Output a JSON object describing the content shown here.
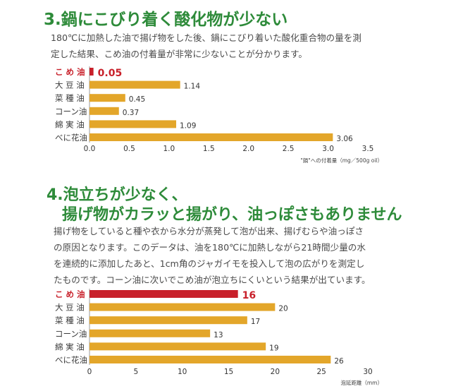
{
  "section1": {
    "title": "3.鍋にこびり着く酸化物が少ない",
    "para": [
      "180℃に加熱した油で揚げ物をした後、鍋にこびり着いた酸化重合物の量を測",
      "定した結果、こめ油の付着量が非常に少ないことが分かります。"
    ]
  },
  "section2": {
    "title_line1": "4.泡立ちが少なく、",
    "title_line2": "揚げ物がカラッと揚がり、油っぽさもありません",
    "para": [
      "揚げ物をしていると種や衣から水分が蒸発して泡が出来、揚げむらや油っぽさ",
      "の原因となります。このデータは、油を180℃に加熱しながら21時間少量の水",
      "を連続的に添加したあと、1cm角のジャガイモを投入して泡の広がりを測定し",
      "たものです。コーン油に次いでこめ油が泡立ちにくいという結果が出ています。"
    ]
  },
  "colors": {
    "title_green": "#2e8b3a",
    "bar_gold": "#e3a62a",
    "highlight_red": "#c8202a"
  },
  "chart_data": [
    {
      "type": "bar",
      "orientation": "horizontal",
      "categories": [
        "こ め 油",
        "大 豆 油",
        "菜 種 油",
        "コーン油",
        "綿 実 油",
        "べに花油"
      ],
      "values": [
        0.05,
        1.14,
        0.45,
        0.37,
        1.09,
        3.06
      ],
      "value_labels": [
        "0.05",
        "1.14",
        "0.45",
        "0.37",
        "1.09",
        "3.06"
      ],
      "highlight_index": 0,
      "xticks": [
        0.0,
        0.5,
        1.0,
        1.5,
        2.0,
        2.5,
        3.0,
        3.5
      ],
      "xtick_labels": [
        "0.0",
        "0.5",
        "1.0",
        "1.5",
        "2.0",
        "2.5",
        "3.0",
        "3.5"
      ],
      "xlim": [
        0,
        3.5
      ],
      "xlabel": "\"鍋\"への付着量（mg／500g oil）"
    },
    {
      "type": "bar",
      "orientation": "horizontal",
      "categories": [
        "こ め 油",
        "大 豆 油",
        "菜 種 油",
        "コーン油",
        "綿 実 油",
        "べに花油"
      ],
      "values": [
        16,
        20,
        17,
        13,
        19,
        26
      ],
      "value_labels": [
        "16",
        "20",
        "17",
        "13",
        "19",
        "26"
      ],
      "highlight_index": 0,
      "xticks": [
        0,
        5,
        10,
        15,
        20,
        25,
        30
      ],
      "xtick_labels": [
        "0",
        "5",
        "10",
        "15",
        "20",
        "25",
        "30"
      ],
      "xlim": [
        0,
        30
      ],
      "xlabel": "泡延距離（mm）"
    }
  ]
}
